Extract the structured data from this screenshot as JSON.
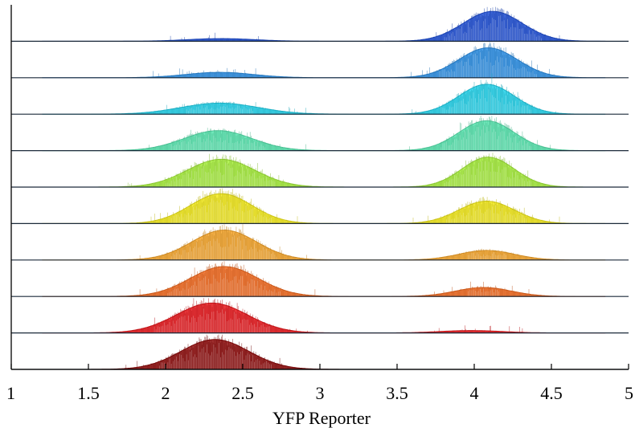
{
  "chart_data": {
    "type": "area",
    "title": "",
    "xlabel": "YFP Reporter",
    "ylabel": "",
    "xlim": [
      1,
      5
    ],
    "x_ticks": [
      1,
      1.5,
      2,
      2.5,
      3,
      3.5,
      4,
      4.5,
      5
    ],
    "x_tick_labels": [
      "1",
      "1.5",
      "2",
      "2.5",
      "3",
      "3.5",
      "4",
      "4.5",
      "5"
    ],
    "grid": false,
    "legend": "none",
    "layout": "ridgeline, top-to-bottom",
    "ridge_scale": "relative density per row",
    "series": [
      {
        "color": "#1f4fd6",
        "low_mode": {
          "center": 2.36,
          "width": 0.22,
          "height": 0.09
        },
        "high_mode": {
          "center": 4.12,
          "width": 0.19,
          "height": 1.0
        }
      },
      {
        "color": "#2b8fe6",
        "low_mode": {
          "center": 2.35,
          "width": 0.22,
          "height": 0.18
        },
        "high_mode": {
          "center": 4.09,
          "width": 0.19,
          "height": 1.0
        }
      },
      {
        "color": "#22d3ec",
        "low_mode": {
          "center": 2.35,
          "width": 0.25,
          "height": 0.37
        },
        "high_mode": {
          "center": 4.08,
          "width": 0.18,
          "height": 1.0
        }
      },
      {
        "color": "#57e6b0",
        "low_mode": {
          "center": 2.34,
          "width": 0.22,
          "height": 0.67
        },
        "high_mode": {
          "center": 4.08,
          "width": 0.18,
          "height": 1.0
        }
      },
      {
        "color": "#a6ee3a",
        "low_mode": {
          "center": 2.36,
          "width": 0.22,
          "height": 0.93
        },
        "high_mode": {
          "center": 4.09,
          "width": 0.17,
          "height": 1.0
        }
      },
      {
        "color": "#f3ea19",
        "low_mode": {
          "center": 2.36,
          "width": 0.2,
          "height": 1.0
        },
        "high_mode": {
          "center": 4.08,
          "width": 0.18,
          "height": 0.75
        }
      },
      {
        "color": "#f8a62a",
        "low_mode": {
          "center": 2.38,
          "width": 0.21,
          "height": 1.0
        },
        "high_mode": {
          "center": 4.08,
          "width": 0.18,
          "height": 0.32
        }
      },
      {
        "color": "#f36a1e",
        "low_mode": {
          "center": 2.38,
          "width": 0.22,
          "height": 1.0
        },
        "high_mode": {
          "center": 4.06,
          "width": 0.18,
          "height": 0.3
        }
      },
      {
        "color": "#e8161b",
        "low_mode": {
          "center": 2.3,
          "width": 0.23,
          "height": 1.0
        },
        "high_mode": {
          "center": 3.98,
          "width": 0.2,
          "height": 0.08
        }
      },
      {
        "color": "#8e0a0a",
        "low_mode": {
          "center": 2.32,
          "width": 0.22,
          "height": 1.0
        },
        "high_mode": {
          "center": 4.0,
          "width": 0.2,
          "height": 0.0
        }
      }
    ]
  }
}
